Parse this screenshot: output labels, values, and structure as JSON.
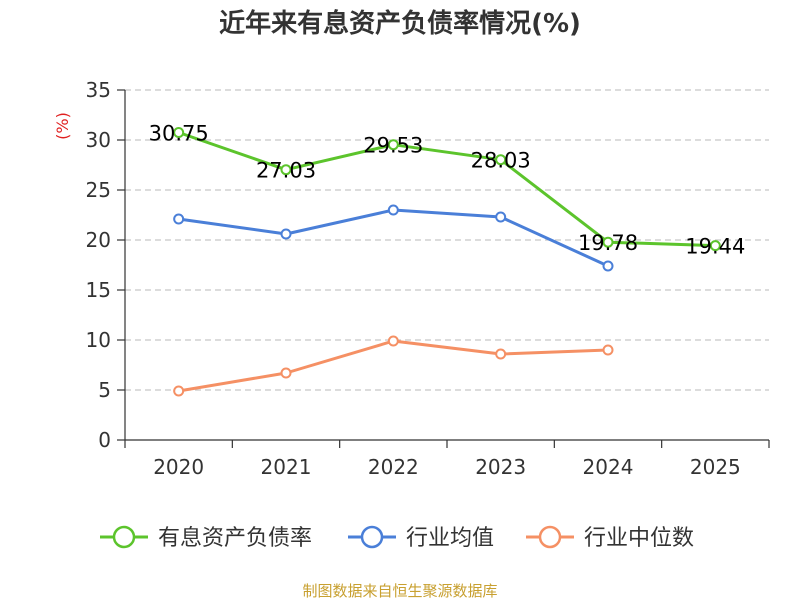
{
  "chart_data": {
    "type": "line",
    "title": "近年来有息资产负债率情况(%)",
    "ylabel": "(%)",
    "xlabel": "",
    "categories": [
      "2020",
      "2021",
      "2022",
      "2023",
      "2024",
      "2025"
    ],
    "ylim": [
      0,
      35
    ],
    "yticks": [
      0,
      5,
      10,
      15,
      20,
      25,
      30,
      35
    ],
    "grid": "horizontal-dashed",
    "legend_position": "bottom",
    "series": [
      {
        "name": "有息资产负债率",
        "color": "#5cc42c",
        "values": [
          30.75,
          27.03,
          29.53,
          28.03,
          19.78,
          19.44
        ],
        "data_labels": [
          "30.75",
          "27.03",
          "29.53",
          "28.03",
          "19.78",
          "19.44"
        ]
      },
      {
        "name": "行业均值",
        "color": "#4a7fd8",
        "values": [
          22.1,
          20.6,
          23.0,
          22.3,
          17.4,
          null
        ],
        "data_labels": []
      },
      {
        "name": "行业中位数",
        "color": "#f59064",
        "values": [
          4.9,
          6.7,
          9.9,
          8.6,
          9.0,
          null
        ],
        "data_labels": []
      }
    ],
    "source": "制图数据来自恒生聚源数据库"
  }
}
